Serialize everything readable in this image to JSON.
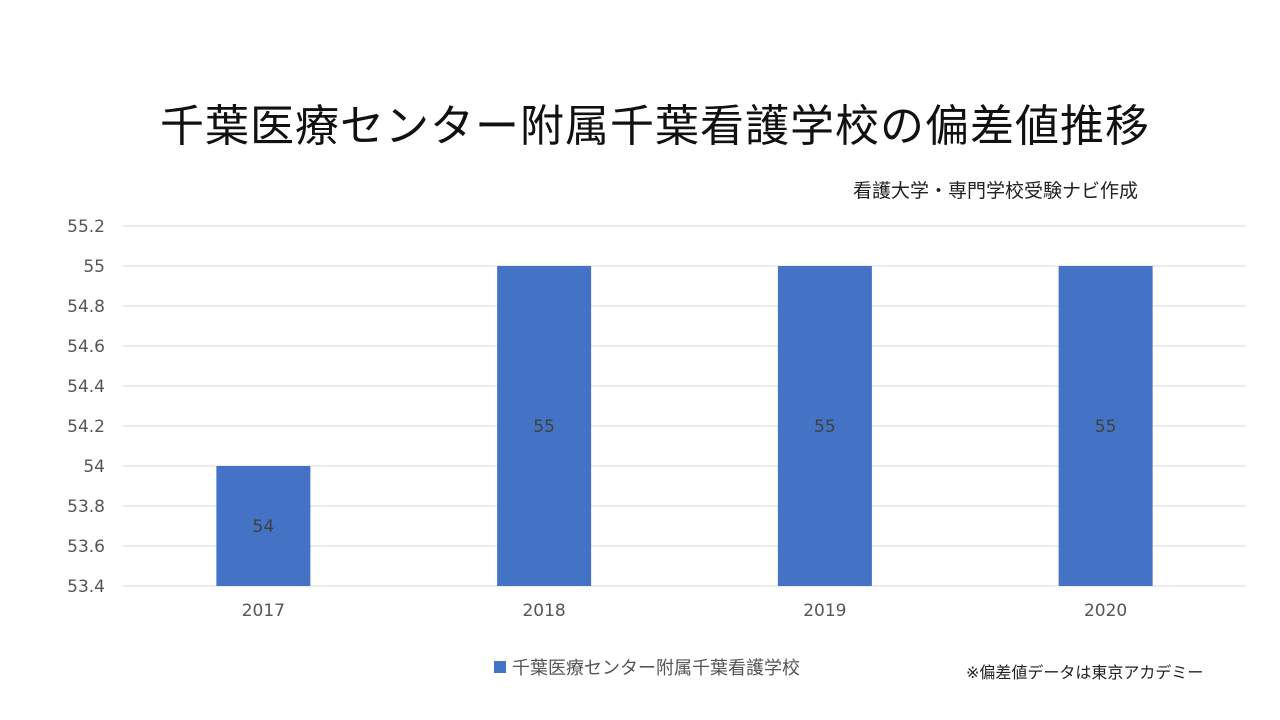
{
  "header": {
    "title": "千葉医療センター附属千葉看護学校の偏差値推移",
    "subtitle": "看護大学・専門学校受験ナビ作成"
  },
  "footer": {
    "note": "※偏差値データは東京アカデミー"
  },
  "colors": {
    "bar": "#4472C4",
    "grid": "#D9D9D9"
  },
  "chart_data": {
    "type": "bar",
    "title": "千葉医療センター附属千葉看護学校の偏差値推移",
    "categories": [
      "2017",
      "2018",
      "2019",
      "2020"
    ],
    "series": [
      {
        "name": "千葉医療センター附属千葉看護学校",
        "values": [
          54,
          55,
          55,
          55
        ]
      }
    ],
    "ylim": [
      53.4,
      55.2
    ],
    "yticks": [
      "53.4",
      "53.6",
      "53.8",
      "54",
      "54.2",
      "54.4",
      "54.6",
      "54.8",
      "55",
      "55.2"
    ],
    "grid": true,
    "legend": "bottom",
    "data_labels": true
  }
}
